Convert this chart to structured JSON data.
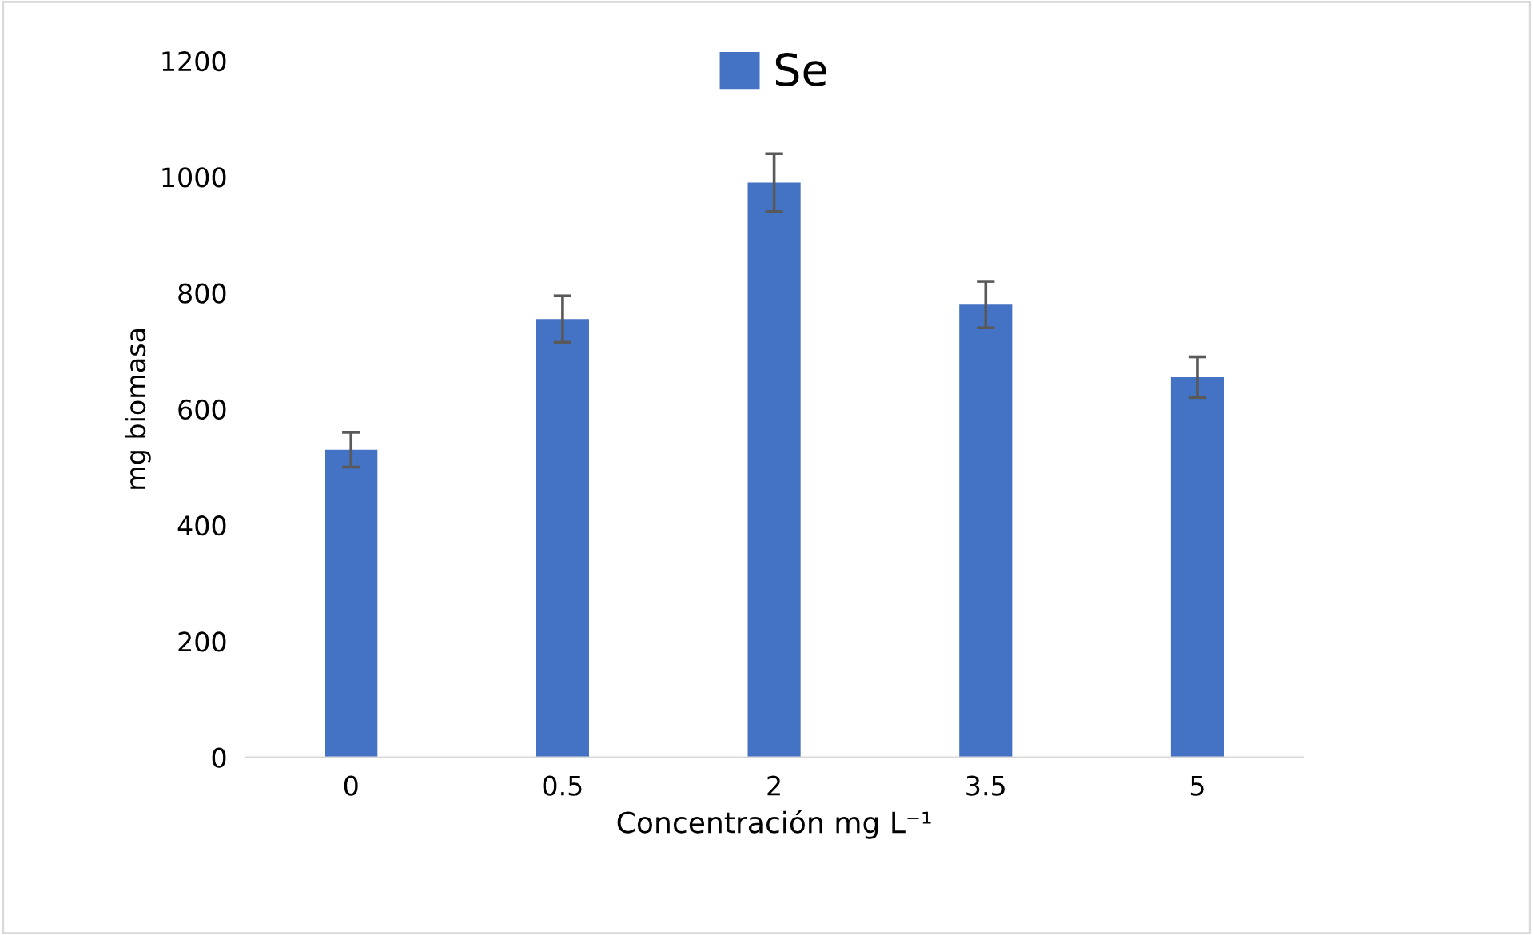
{
  "chart_data": {
    "type": "bar",
    "xlabel": "Concentración mg L⁻¹",
    "ylabel": "mg biomasa",
    "categories": [
      "0",
      "0.5",
      "2",
      "3.5",
      "5"
    ],
    "series": [
      {
        "name": "Se",
        "color": "#4472c4",
        "values": [
          530,
          755,
          990,
          780,
          655
        ],
        "errors": [
          30,
          40,
          50,
          40,
          35
        ]
      }
    ],
    "ylim": [
      0,
      1200
    ],
    "yticks": [
      0,
      200,
      400,
      600,
      800,
      1000,
      1200
    ],
    "grid": false,
    "legend": "top"
  }
}
